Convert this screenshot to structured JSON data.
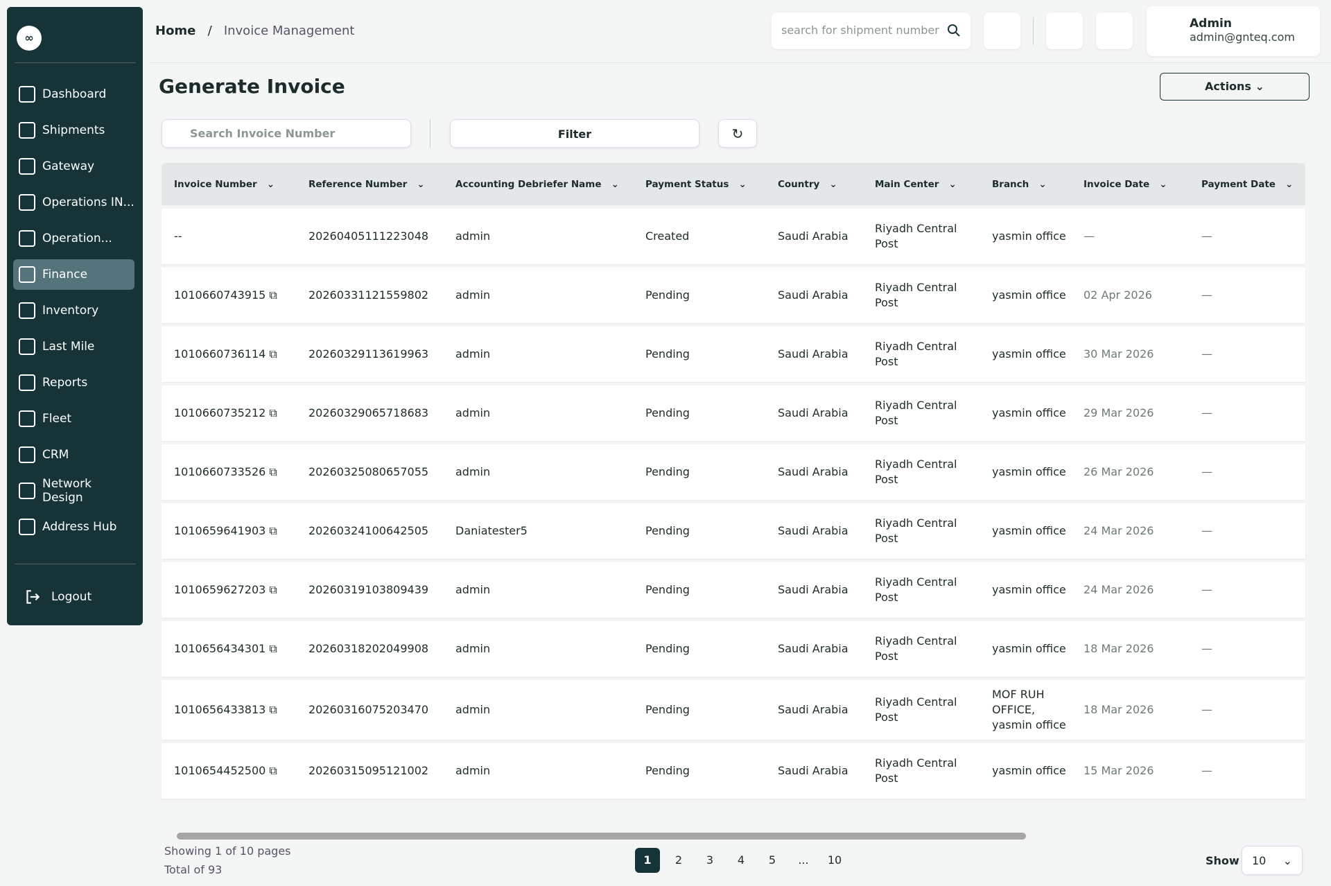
{
  "sidebar": {
    "items": [
      "Dashboard",
      "Shipments",
      "Gateway",
      "Operations IN...",
      "Operation...",
      "Finance",
      "Inventory",
      "Last Mile",
      "Reports",
      "Fleet",
      "CRM",
      "Network Design",
      "Address Hub"
    ],
    "active": 5,
    "logout": "Logout"
  },
  "header": {
    "breadcrumb": [
      "Home",
      "Invoice Management"
    ],
    "search_placeholder": "search for shipment number",
    "user_name": "Admin",
    "user_email": "admin@gnteq.com"
  },
  "page": {
    "title": "Generate Invoice",
    "actions": "Actions",
    "search_placeholder": "Search Invoice Number",
    "filter": "Filter"
  },
  "table": {
    "columns": [
      "Invoice Number",
      "Reference Number",
      "Accounting Debriefer Name",
      "Payment Status",
      "Country",
      "Main Center",
      "Branch",
      "Invoice Date",
      "Payment Date"
    ],
    "rows": [
      [
        "--",
        "20260405111223048",
        "admin",
        "Created",
        "Saudi Arabia",
        "Riyadh Central Post",
        "yasmin office",
        "—",
        "—"
      ],
      [
        "1010660743915",
        "20260331121559802",
        "admin",
        "Pending",
        "Saudi Arabia",
        "Riyadh Central Post",
        "yasmin office",
        "02 Apr 2026",
        "—"
      ],
      [
        "1010660736114",
        "20260329113619963",
        "admin",
        "Pending",
        "Saudi Arabia",
        "Riyadh Central Post",
        "yasmin office",
        "30 Mar 2026",
        "—"
      ],
      [
        "1010660735212",
        "20260329065718683",
        "admin",
        "Pending",
        "Saudi Arabia",
        "Riyadh Central Post",
        "yasmin office",
        "29 Mar 2026",
        "—"
      ],
      [
        "1010660733526",
        "20260325080657055",
        "admin",
        "Pending",
        "Saudi Arabia",
        "Riyadh Central Post",
        "yasmin office",
        "26 Mar 2026",
        "—"
      ],
      [
        "1010659641903",
        "20260324100642505",
        "Daniatester5",
        "Pending",
        "Saudi Arabia",
        "Riyadh Central Post",
        "yasmin office",
        "24 Mar 2026",
        "—"
      ],
      [
        "1010659627203",
        "20260319103809439",
        "admin",
        "Pending",
        "Saudi Arabia",
        "Riyadh Central Post",
        "yasmin office",
        "24 Mar 2026",
        "—"
      ],
      [
        "1010656434301",
        "20260318202049908",
        "admin",
        "Pending",
        "Saudi Arabia",
        "Riyadh Central Post",
        "yasmin office",
        "18 Mar 2026",
        "—"
      ],
      [
        "1010656433813",
        "20260316075203470",
        "admin",
        "Pending",
        "Saudi Arabia",
        "Riyadh Central Post",
        "MOF RUH OFFICE, yasmin office",
        "18 Mar 2026",
        "—"
      ],
      [
        "1010654452500",
        "20260315095121002",
        "admin",
        "Pending",
        "Saudi Arabia",
        "Riyadh Central Post",
        "yasmin office",
        "15 Mar 2026",
        "—"
      ]
    ]
  },
  "pagination": {
    "showing": "Showing 1 of 10 pages",
    "total": "Total of 93",
    "pages": [
      "1",
      "2",
      "3",
      "4",
      "5",
      "...",
      "10"
    ],
    "current": 0,
    "show_label": "Show",
    "page_size": "10"
  }
}
